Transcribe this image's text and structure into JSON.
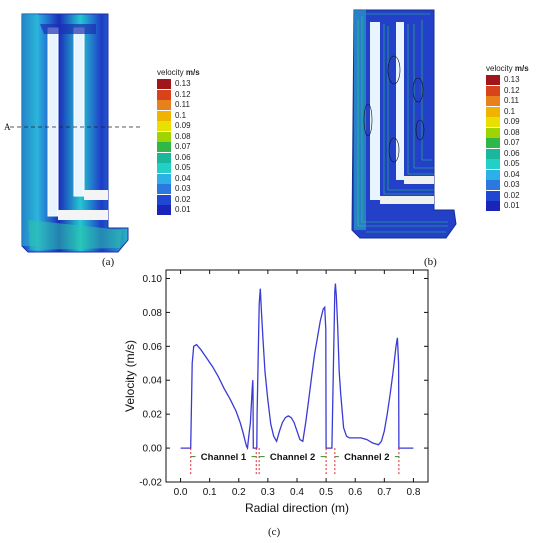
{
  "panel_a": {
    "section_label": "A",
    "caption": "(a)",
    "legend": {
      "title_word": "velocity",
      "title_unit": "m/s",
      "levels": [
        "0.13",
        "0.12",
        "0.11",
        "0.1",
        "0.09",
        "0.08",
        "0.07",
        "0.06",
        "0.05",
        "0.04",
        "0.03",
        "0.02",
        "0.01"
      ]
    }
  },
  "panel_b": {
    "caption": "(b)",
    "legend": {
      "title_word": "velocity",
      "title_unit": "m/s",
      "levels": [
        "0.13",
        "0.12",
        "0.11",
        "0.1",
        "0.09",
        "0.08",
        "0.07",
        "0.06",
        "0.05",
        "0.04",
        "0.03",
        "0.02",
        "0.01"
      ]
    }
  },
  "legend_colors": [
    "#a0161b",
    "#d8431c",
    "#e8811c",
    "#f0b400",
    "#e8e000",
    "#9fd400",
    "#2fb84a",
    "#19b89a",
    "#23d0c8",
    "#2db0e8",
    "#2a78e0",
    "#2146d2",
    "#1a24b8"
  ],
  "panel_c": {
    "caption": "(c)",
    "chart_data": {
      "type": "line",
      "xlabel": "Radial direction (m)",
      "ylabel": "Velocity (m/s)",
      "xlim": [
        -0.05,
        0.85
      ],
      "ylim": [
        -0.02,
        0.105
      ],
      "xticks": [
        "0.0",
        "0.1",
        "0.2",
        "0.3",
        "0.4",
        "0.5",
        "0.6",
        "0.7",
        "0.8"
      ],
      "yticks": [
        "-0.02",
        "0.00",
        "0.02",
        "0.04",
        "0.06",
        "0.08",
        "0.10"
      ],
      "line_color": "#3a3ad6",
      "channels": [
        {
          "name": "Channel 1",
          "x_start": 0.035,
          "x_end": 0.26
        },
        {
          "name": "Channel 2",
          "x_start": 0.27,
          "x_end": 0.5
        },
        {
          "name": "Channel 2",
          "x_start": 0.53,
          "x_end": 0.75
        }
      ],
      "series": [
        {
          "x": [
            0.0,
            0.034,
            0.035,
            0.04,
            0.045,
            0.055,
            0.07,
            0.09,
            0.11,
            0.13,
            0.15,
            0.17,
            0.19,
            0.205,
            0.215,
            0.222,
            0.227,
            0.23,
            0.233,
            0.24,
            0.243,
            0.246,
            0.248,
            0.249,
            0.25,
            0.262,
            0.263,
            0.27,
            0.274,
            0.278,
            0.283,
            0.29,
            0.3,
            0.31,
            0.32,
            0.33,
            0.34,
            0.35,
            0.36,
            0.37,
            0.38,
            0.39,
            0.4,
            0.41,
            0.42,
            0.43,
            0.44,
            0.45,
            0.46,
            0.47,
            0.48,
            0.49,
            0.495,
            0.499,
            0.5,
            0.52,
            0.53,
            0.532,
            0.535,
            0.54,
            0.545,
            0.55,
            0.56,
            0.57,
            0.58,
            0.6,
            0.62,
            0.64,
            0.66,
            0.68,
            0.69,
            0.7,
            0.71,
            0.72,
            0.73,
            0.74,
            0.745,
            0.749,
            0.75,
            0.8
          ],
          "y": [
            0.0,
            0.0,
            0.0,
            0.05,
            0.06,
            0.061,
            0.058,
            0.053,
            0.048,
            0.042,
            0.035,
            0.029,
            0.022,
            0.015,
            0.009,
            0.004,
            0.001,
            0.0,
            0.005,
            0.015,
            0.025,
            0.035,
            0.04,
            0.035,
            0.0,
            0.0,
            0.02,
            0.085,
            0.094,
            0.08,
            0.065,
            0.045,
            0.028,
            0.014,
            0.007,
            0.004,
            0.01,
            0.015,
            0.018,
            0.019,
            0.018,
            0.015,
            0.01,
            0.005,
            0.004,
            0.015,
            0.028,
            0.042,
            0.055,
            0.065,
            0.075,
            0.082,
            0.083,
            0.07,
            0.0,
            0.0,
            0.092,
            0.097,
            0.09,
            0.07,
            0.045,
            0.032,
            0.012,
            0.007,
            0.006,
            0.006,
            0.006,
            0.005,
            0.003,
            0.002,
            0.004,
            0.01,
            0.02,
            0.032,
            0.045,
            0.06,
            0.065,
            0.05,
            0.0,
            0.0
          ]
        }
      ]
    }
  }
}
